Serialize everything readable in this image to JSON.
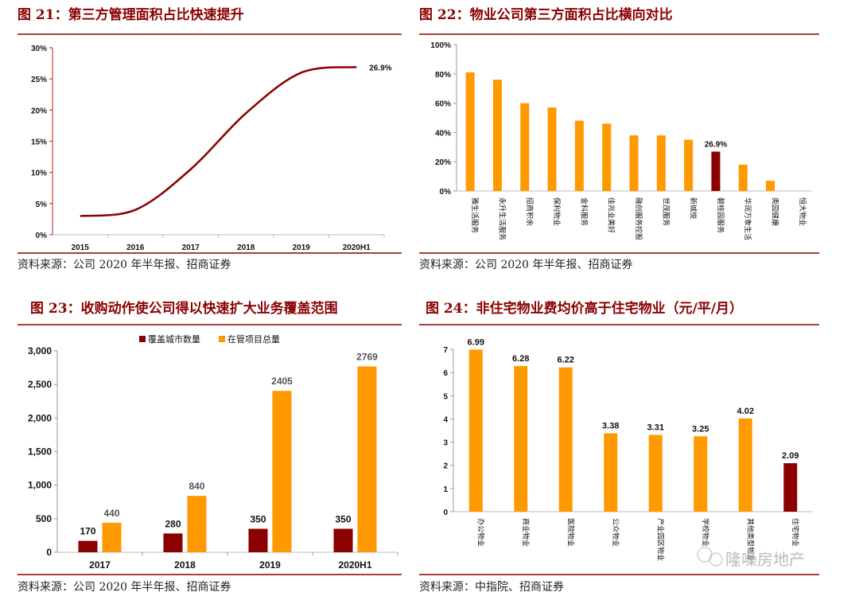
{
  "chart_data": [
    {
      "type": "line",
      "title": "图 21：第三方管理面积占比快速提升",
      "source": "资料来源：公司 2020 年半年报、招商证券",
      "categories": [
        "2015",
        "2016",
        "2017",
        "2018",
        "2019",
        "2020H1"
      ],
      "values": [
        3.0,
        4.0,
        10.5,
        19.5,
        26.0,
        26.9
      ],
      "data_labels": {
        "5": "26.9%"
      },
      "ylim": [
        0,
        30
      ],
      "yticks": [
        "0%",
        "5%",
        "10%",
        "15%",
        "20%",
        "25%",
        "30%"
      ],
      "grid": false,
      "color": "#8b0000"
    },
    {
      "type": "bar",
      "title": "图 22：物业公司第三方面积占比横向对比",
      "source": "资料来源：公司 2020 年半年报、招商证券",
      "categories": [
        "雅生活服务",
        "永升生活服务",
        "招商积余",
        "保利物业",
        "金科服务",
        "佳兆业美好",
        "融创服务控股",
        "世茂服务",
        "新城悦",
        "碧桂园服务",
        "华润万象生活",
        "奥园健康",
        "恒大物业"
      ],
      "values": [
        81,
        76,
        60,
        57,
        48,
        46,
        38,
        38,
        35,
        26.9,
        18,
        7,
        0
      ],
      "data_labels": {
        "9": "26.9%"
      },
      "highlight_index": 9,
      "ylim": [
        0,
        100
      ],
      "yticks": [
        "0%",
        "20%",
        "40%",
        "60%",
        "80%",
        "100%"
      ],
      "colors": {
        "bar": "#ff9900",
        "highlight": "#8b0000"
      }
    },
    {
      "type": "bar",
      "title": "图 23：收购动作使公司得以快速扩大业务覆盖范围",
      "source": "资料来源：公司 2020 年半年报、招商证券",
      "categories": [
        "2017",
        "2018",
        "2019",
        "2020H1"
      ],
      "series": [
        {
          "name": "覆盖城市数量",
          "values": [
            170,
            280,
            350,
            350
          ],
          "labels": [
            "170",
            "280",
            "350",
            "350"
          ],
          "color": "#8b0000"
        },
        {
          "name": "在管项目总量",
          "values": [
            440,
            840,
            2405,
            2769
          ],
          "labels": [
            "440",
            "840",
            "2405",
            "2769"
          ],
          "color": "#ff9900"
        }
      ],
      "ylim": [
        0,
        3000
      ],
      "yticks": [
        "0",
        "500",
        "1,000",
        "1,500",
        "2,000",
        "2,500",
        "3,000"
      ],
      "legend": "top"
    },
    {
      "type": "bar",
      "title": "图 24：非住宅物业费均价高于住宅物业（元/平/月）",
      "source": "资料来源：中指院、招商证券",
      "categories": [
        "办公物业",
        "商业物业",
        "医院物业",
        "公众物业",
        "产业园区物业",
        "学校物业",
        "其他类型物业",
        "住宅物业"
      ],
      "values": [
        6.99,
        6.28,
        6.22,
        3.38,
        3.31,
        3.25,
        4.02,
        2.09
      ],
      "labels": [
        "6.99",
        "6.28",
        "6.22",
        "3.38",
        "3.31",
        "3.25",
        "4.02",
        "2.09"
      ],
      "highlight_index": 7,
      "ylim": [
        0,
        7
      ],
      "yticks": [
        "0",
        "1",
        "2",
        "3",
        "4",
        "5",
        "6",
        "7"
      ],
      "colors": {
        "bar": "#ff9900",
        "highlight": "#8b0000"
      }
    }
  ],
  "watermark": "隆噪房地产"
}
